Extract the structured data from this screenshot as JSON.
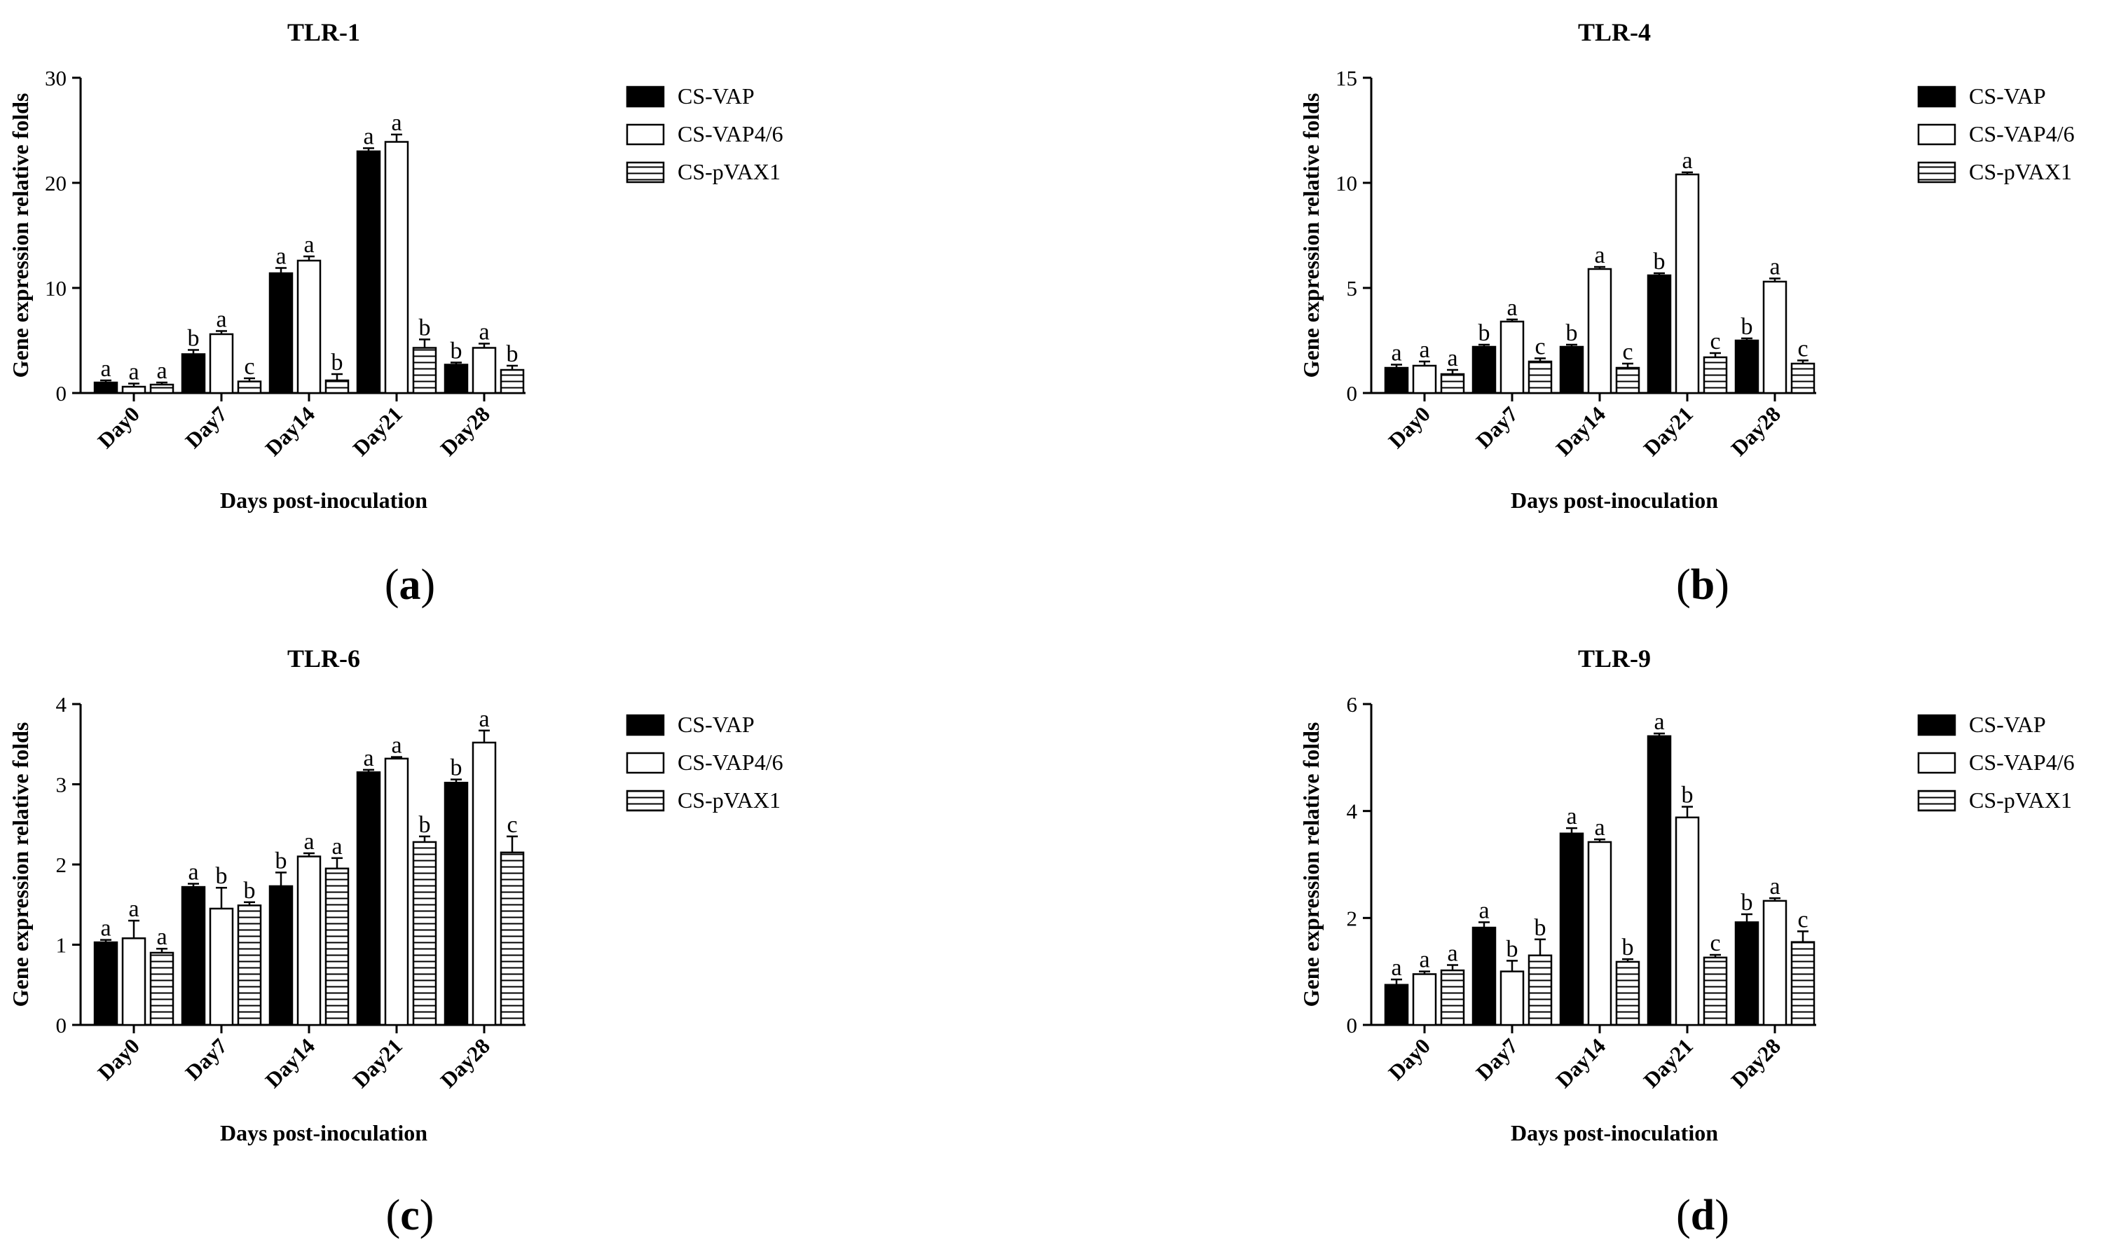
{
  "colors": {
    "ink": "#000000",
    "background": "#ffffff"
  },
  "chart_data": [
    {
      "type": "bar",
      "panel": "(a)",
      "panel_letter": "a",
      "title": "TLR-1",
      "xlabel": "Days post-inoculation",
      "ylabel": "Gene expression relative folds",
      "ylim": [
        0,
        30
      ],
      "yticks": [
        0,
        10,
        20,
        30
      ],
      "categories": [
        "Day0",
        "Day7",
        "Day14",
        "Day21",
        "Day28"
      ],
      "series": [
        {
          "name": "CS-VAP",
          "fill": "solid",
          "values": [
            1.0,
            3.7,
            11.4,
            23.0,
            2.7
          ],
          "errors": [
            0.2,
            0.4,
            0.5,
            0.3,
            0.2
          ],
          "letters": [
            "a",
            "b",
            "a",
            "a",
            "b"
          ]
        },
        {
          "name": "CS-VAP4/6",
          "fill": "open",
          "values": [
            0.6,
            5.6,
            12.6,
            23.9,
            4.3
          ],
          "errors": [
            0.3,
            0.3,
            0.4,
            0.7,
            0.4
          ],
          "letters": [
            "a",
            "a",
            "a",
            "a",
            "a"
          ]
        },
        {
          "name": "CS-pVAX1",
          "fill": "hatched",
          "values": [
            0.8,
            1.1,
            1.2,
            4.3,
            2.2
          ],
          "errors": [
            0.2,
            0.3,
            0.6,
            0.8,
            0.4
          ],
          "letters": [
            "a",
            "c",
            "b",
            "b",
            "b"
          ]
        }
      ]
    },
    {
      "type": "bar",
      "panel": "(b)",
      "panel_letter": "b",
      "title": "TLR-4",
      "xlabel": "Days post-inoculation",
      "ylabel": "Gene expression relative folds",
      "ylim": [
        0,
        15
      ],
      "yticks": [
        0,
        5,
        10,
        15
      ],
      "categories": [
        "Day0",
        "Day7",
        "Day14",
        "Day21",
        "Day28"
      ],
      "series": [
        {
          "name": "CS-VAP",
          "fill": "solid",
          "values": [
            1.2,
            2.2,
            2.2,
            5.6,
            2.5
          ],
          "errors": [
            0.15,
            0.1,
            0.1,
            0.1,
            0.1
          ],
          "letters": [
            "a",
            "b",
            "b",
            "b",
            "b"
          ]
        },
        {
          "name": "CS-VAP4/6",
          "fill": "open",
          "values": [
            1.3,
            3.4,
            5.9,
            10.4,
            5.3
          ],
          "errors": [
            0.2,
            0.1,
            0.1,
            0.1,
            0.15
          ],
          "letters": [
            "a",
            "a",
            "a",
            "a",
            "a"
          ]
        },
        {
          "name": "CS-pVAX1",
          "fill": "hatched",
          "values": [
            0.9,
            1.5,
            1.2,
            1.7,
            1.4
          ],
          "errors": [
            0.2,
            0.15,
            0.2,
            0.2,
            0.15
          ],
          "letters": [
            "a",
            "c",
            "c",
            "c",
            "c"
          ]
        }
      ]
    },
    {
      "type": "bar",
      "panel": "(c)",
      "panel_letter": "c",
      "title": "TLR-6",
      "xlabel": "Days post-inoculation",
      "ylabel": "Gene expression relative folds",
      "ylim": [
        0,
        4
      ],
      "yticks": [
        0,
        1,
        2,
        3,
        4
      ],
      "categories": [
        "Day0",
        "Day7",
        "Day14",
        "Day21",
        "Day28"
      ],
      "series": [
        {
          "name": "CS-VAP",
          "fill": "solid",
          "values": [
            1.03,
            1.72,
            1.73,
            3.15,
            3.02
          ],
          "errors": [
            0.03,
            0.04,
            0.17,
            0.03,
            0.04
          ],
          "letters": [
            "a",
            "a",
            "b",
            "a",
            "b"
          ]
        },
        {
          "name": "CS-VAP4/6",
          "fill": "open",
          "values": [
            1.08,
            1.45,
            2.1,
            3.32,
            3.52
          ],
          "errors": [
            0.22,
            0.26,
            0.04,
            0.02,
            0.15
          ],
          "letters": [
            "a",
            "b",
            "a",
            "a",
            "a"
          ]
        },
        {
          "name": "CS-pVAX1",
          "fill": "hatched",
          "values": [
            0.9,
            1.49,
            1.95,
            2.28,
            2.15
          ],
          "errors": [
            0.05,
            0.04,
            0.13,
            0.07,
            0.2
          ],
          "letters": [
            "a",
            "b",
            "a",
            "b",
            "c"
          ]
        }
      ]
    },
    {
      "type": "bar",
      "panel": "(d)",
      "panel_letter": "d",
      "title": "TLR-9",
      "xlabel": "Days post-inoculation",
      "ylabel": "Gene expression relative folds",
      "ylim": [
        0,
        6
      ],
      "yticks": [
        0,
        2,
        4,
        6
      ],
      "categories": [
        "Day0",
        "Day7",
        "Day14",
        "Day21",
        "Day28"
      ],
      "series": [
        {
          "name": "CS-VAP",
          "fill": "solid",
          "values": [
            0.75,
            1.82,
            3.58,
            5.4,
            1.92
          ],
          "errors": [
            0.1,
            0.1,
            0.1,
            0.05,
            0.15
          ],
          "letters": [
            "a",
            "a",
            "a",
            "a",
            "b"
          ]
        },
        {
          "name": "CS-VAP4/6",
          "fill": "open",
          "values": [
            0.95,
            1.0,
            3.42,
            3.88,
            2.32
          ],
          "errors": [
            0.05,
            0.2,
            0.05,
            0.2,
            0.05
          ],
          "letters": [
            "a",
            "b",
            "a",
            "b",
            "a"
          ]
        },
        {
          "name": "CS-pVAX1",
          "fill": "hatched",
          "values": [
            1.02,
            1.3,
            1.18,
            1.26,
            1.55
          ],
          "errors": [
            0.1,
            0.3,
            0.05,
            0.05,
            0.2
          ],
          "letters": [
            "a",
            "b",
            "b",
            "c",
            "c"
          ]
        }
      ]
    }
  ]
}
